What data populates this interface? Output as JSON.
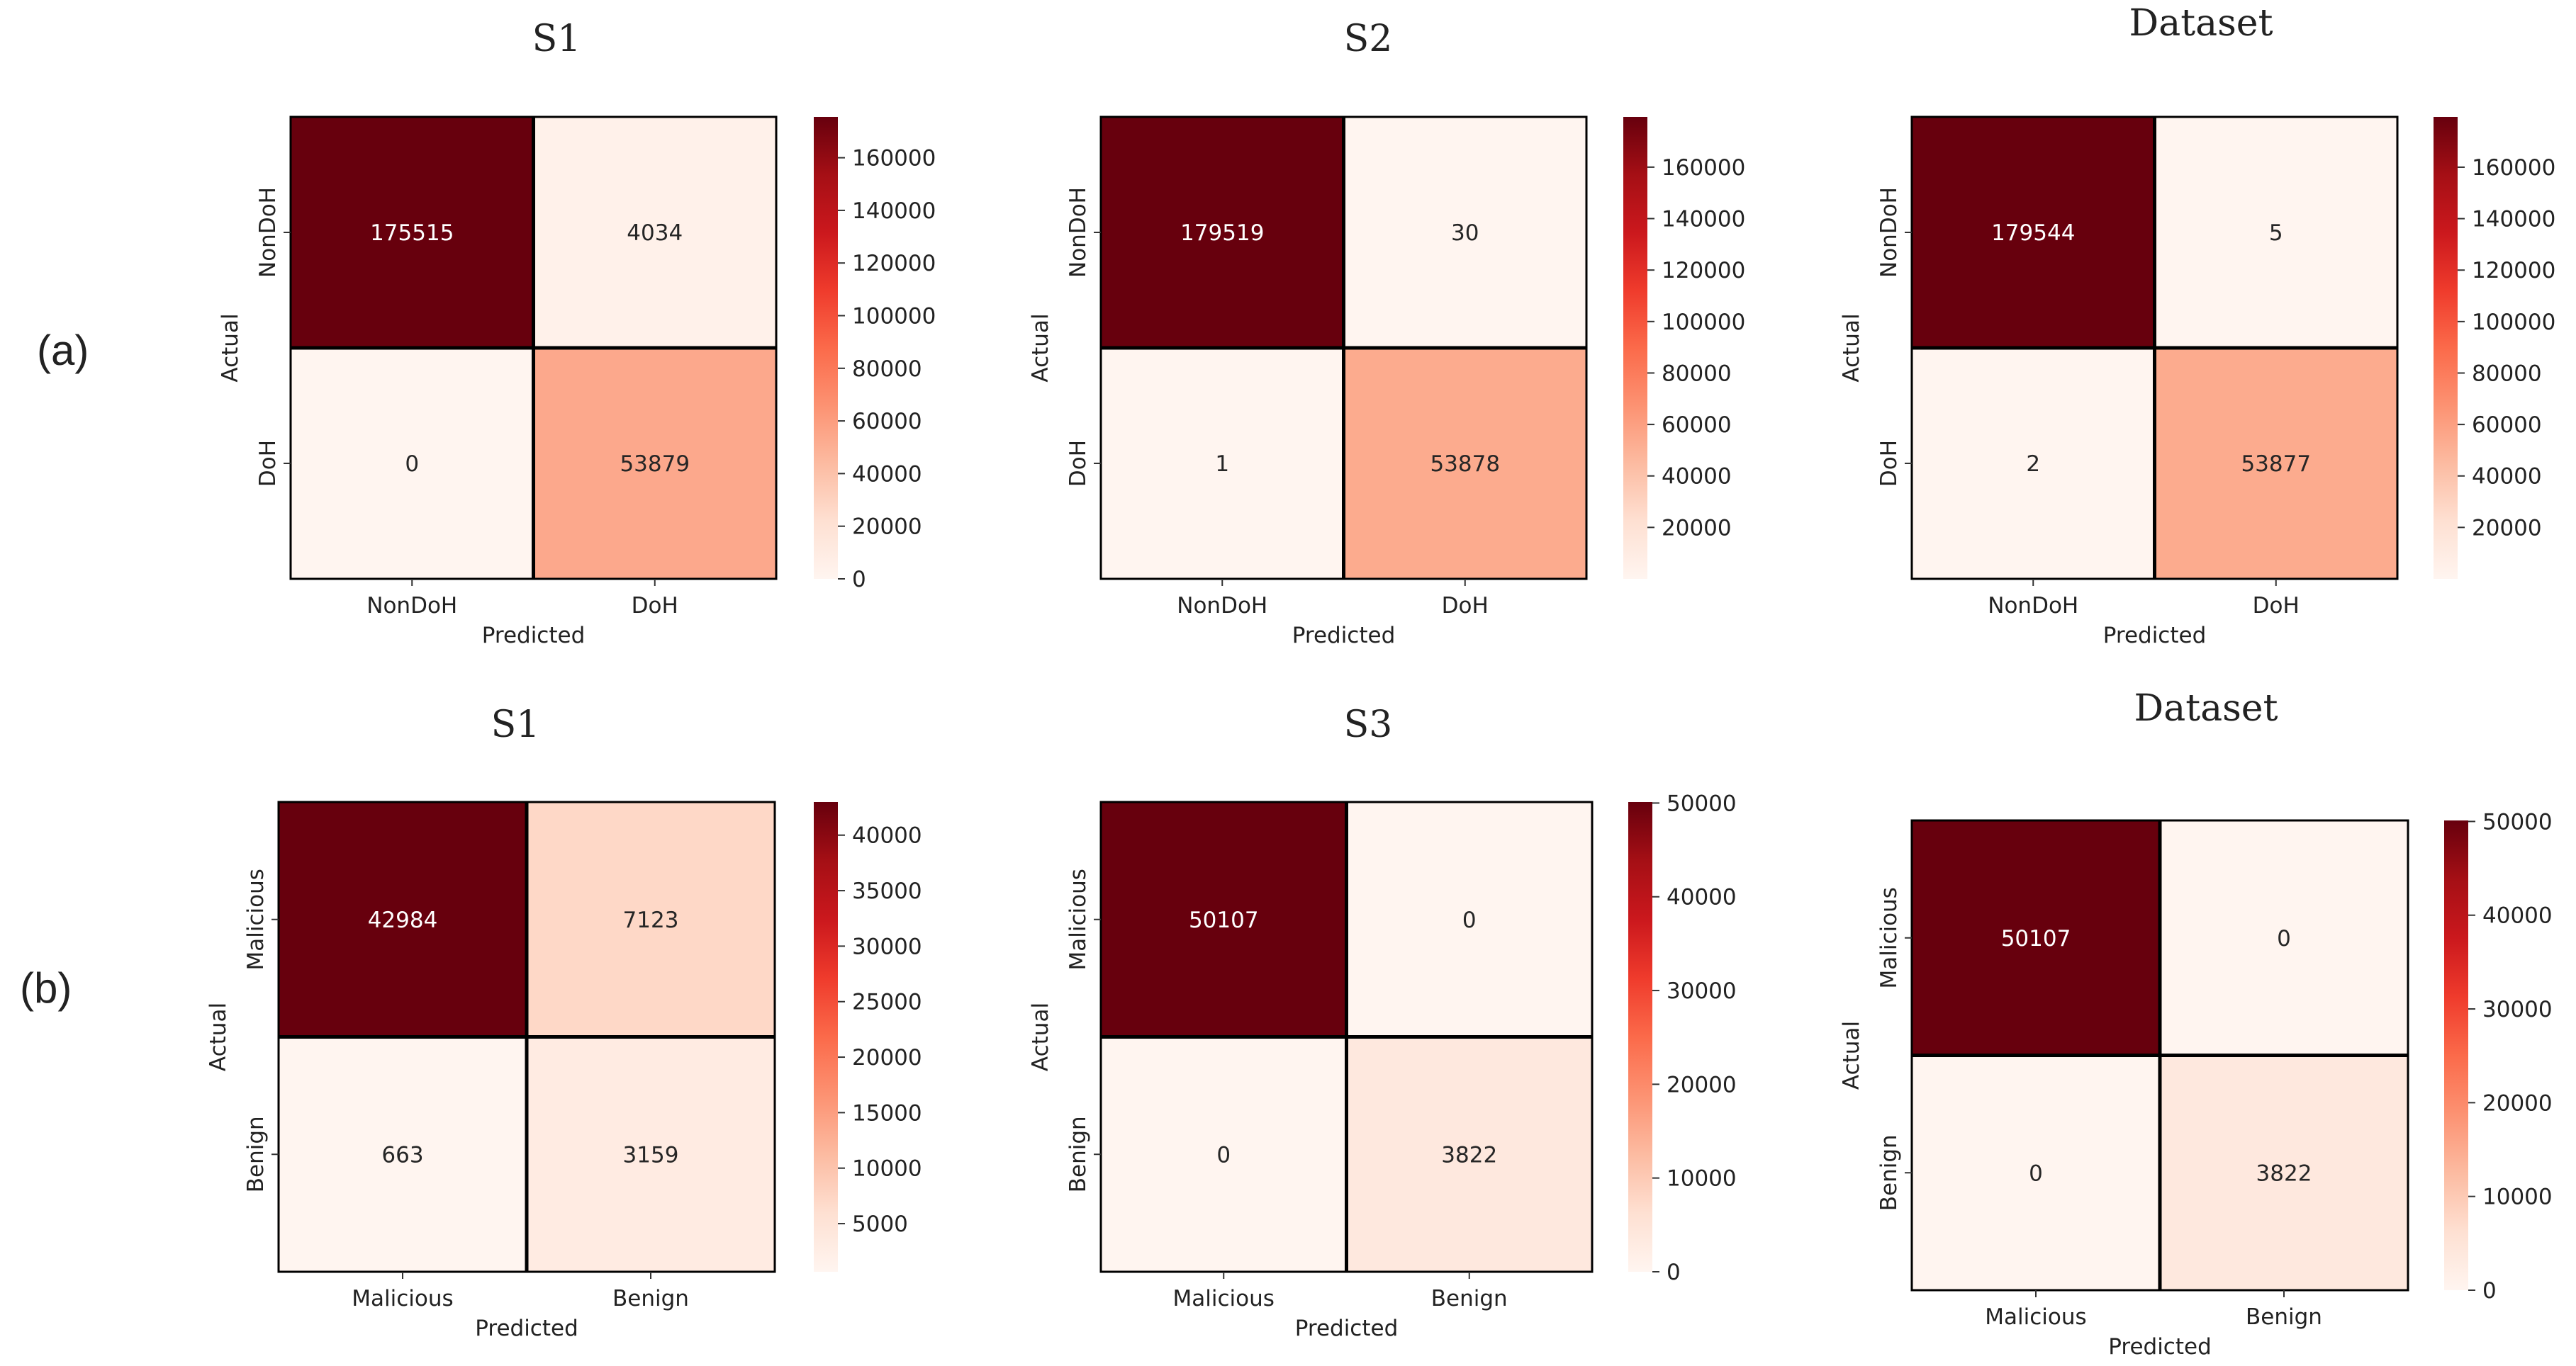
{
  "row_labels": [
    "(a)",
    "(b)"
  ],
  "chart_data": [
    {
      "type": "heatmap",
      "title": "S1",
      "xlabel": "Predicted",
      "ylabel": "Actual",
      "x_categories": [
        "NonDoH",
        "DoH"
      ],
      "y_categories": [
        "NonDoH",
        "DoH"
      ],
      "values": [
        [
          175515,
          4034
        ],
        [
          0,
          53879
        ]
      ],
      "colormap": "Reds",
      "color_range": [
        0,
        175515
      ],
      "colorbar_ticks": [
        0,
        20000,
        40000,
        60000,
        80000,
        100000,
        120000,
        140000,
        160000
      ],
      "colorbar_labels": [
        "0",
        "20000",
        "40000",
        "60000",
        "80000",
        "100000",
        "120000",
        "140000",
        "160000"
      ]
    },
    {
      "type": "heatmap",
      "title": "S2",
      "xlabel": "Predicted",
      "ylabel": "Actual",
      "x_categories": [
        "NonDoH",
        "DoH"
      ],
      "y_categories": [
        "NonDoH",
        "DoH"
      ],
      "values": [
        [
          179519,
          30
        ],
        [
          1,
          53878
        ]
      ],
      "colormap": "Reds",
      "color_range": [
        1,
        179519
      ],
      "colorbar_ticks": [
        20000,
        40000,
        60000,
        80000,
        100000,
        120000,
        140000,
        160000
      ],
      "colorbar_labels": [
        "20000",
        "40000",
        "60000",
        "80000",
        "100000",
        "120000",
        "140000",
        "160000"
      ]
    },
    {
      "type": "heatmap",
      "title": "Dataset",
      "xlabel": "Predicted",
      "ylabel": "Actual",
      "x_categories": [
        "NonDoH",
        "DoH"
      ],
      "y_categories": [
        "NonDoH",
        "DoH"
      ],
      "values": [
        [
          179544,
          5
        ],
        [
          2,
          53877
        ]
      ],
      "colormap": "Reds",
      "color_range": [
        2,
        179544
      ],
      "colorbar_ticks": [
        20000,
        40000,
        60000,
        80000,
        100000,
        120000,
        140000,
        160000
      ],
      "colorbar_labels": [
        "20000",
        "40000",
        "60000",
        "80000",
        "100000",
        "120000",
        "140000",
        "160000"
      ]
    },
    {
      "type": "heatmap",
      "title": "S1",
      "xlabel": "Predicted",
      "ylabel": "Actual",
      "x_categories": [
        "Malicious",
        "Benign"
      ],
      "y_categories": [
        "Malicious",
        "Benign"
      ],
      "values": [
        [
          42984,
          7123
        ],
        [
          663,
          3159
        ]
      ],
      "colormap": "Reds",
      "color_range": [
        663,
        42984
      ],
      "colorbar_ticks": [
        5000,
        10000,
        15000,
        20000,
        25000,
        30000,
        35000,
        40000
      ],
      "colorbar_labels": [
        "5000",
        "10000",
        "15000",
        "20000",
        "25000",
        "30000",
        "35000",
        "40000"
      ]
    },
    {
      "type": "heatmap",
      "title": "S3",
      "xlabel": "Predicted",
      "ylabel": "Actual",
      "x_categories": [
        "Malicious",
        "Benign"
      ],
      "y_categories": [
        "Malicious",
        "Benign"
      ],
      "values": [
        [
          50107,
          0
        ],
        [
          0,
          3822
        ]
      ],
      "colormap": "Reds",
      "color_range": [
        0,
        50107
      ],
      "colorbar_ticks": [
        0,
        10000,
        20000,
        30000,
        40000,
        50000
      ],
      "colorbar_labels": [
        "0",
        "10000",
        "20000",
        "30000",
        "40000",
        "50000"
      ]
    },
    {
      "type": "heatmap",
      "title": "Dataset",
      "xlabel": "Predicted",
      "ylabel": "Actual",
      "x_categories": [
        "Malicious",
        "Benign"
      ],
      "y_categories": [
        "Malicious",
        "Benign"
      ],
      "values": [
        [
          50107,
          0
        ],
        [
          0,
          3822
        ]
      ],
      "colormap": "Reds",
      "color_range": [
        0,
        50107
      ],
      "colorbar_ticks": [
        0,
        10000,
        20000,
        30000,
        40000,
        50000
      ],
      "colorbar_labels": [
        "0",
        "10000",
        "20000",
        "30000",
        "40000",
        "50000"
      ]
    }
  ]
}
